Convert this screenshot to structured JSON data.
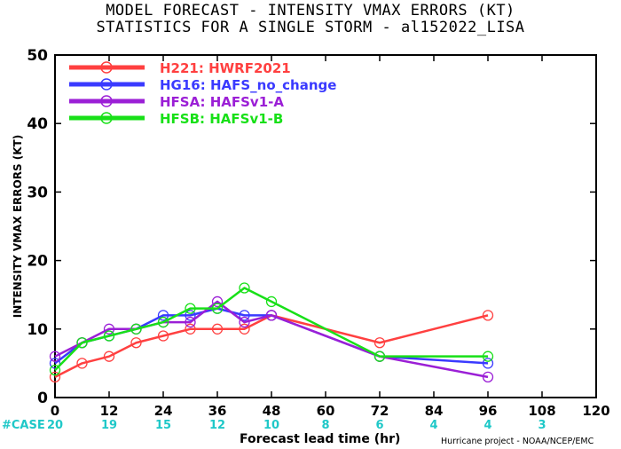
{
  "chart_data": {
    "type": "line",
    "title": "MODEL FORECAST - INTENSITY VMAX ERRORS (KT)",
    "subtitle": "STATISTICS FOR A SINGLE STORM - al152022_LISA",
    "xlabel": "Forecast lead time (hr)",
    "ylabel": "INTENSITY VMAX ERRORS (KT)",
    "xlim": [
      0,
      120
    ],
    "ylim": [
      0,
      50
    ],
    "xticks": [
      0,
      12,
      24,
      36,
      48,
      60,
      72,
      84,
      96,
      108,
      120
    ],
    "yticks": [
      0,
      10,
      20,
      30,
      40,
      50
    ],
    "grid": false,
    "legend_position": "top-left",
    "series": [
      {
        "name": "H221: HWRF2021",
        "color": "#ff4040",
        "x": [
          0,
          6,
          12,
          18,
          24,
          30,
          36,
          42,
          48,
          72,
          96
        ],
        "y": [
          3,
          5,
          6,
          8,
          9,
          10,
          10,
          10,
          12,
          8,
          12
        ]
      },
      {
        "name": "HG16: HAFS_no_change",
        "color": "#3a3aff",
        "x": [
          0,
          6,
          12,
          18,
          24,
          30,
          36,
          42,
          48,
          72,
          96
        ],
        "y": [
          5,
          8,
          9,
          10,
          12,
          12,
          13,
          12,
          12,
          6,
          5
        ]
      },
      {
        "name": "HFSA: HAFSv1-A",
        "color": "#9b1fd6",
        "x": [
          0,
          6,
          12,
          18,
          24,
          30,
          36,
          42,
          48,
          72,
          96
        ],
        "y": [
          6,
          8,
          10,
          10,
          11,
          11,
          14,
          11,
          12,
          6,
          3
        ]
      },
      {
        "name": "HFSB: HAFSv1-B",
        "color": "#18e018",
        "x": [
          0,
          6,
          12,
          18,
          24,
          30,
          36,
          42,
          48,
          72,
          96
        ],
        "y": [
          4,
          8,
          9,
          10,
          11,
          13,
          13,
          16,
          14,
          6,
          6
        ]
      }
    ],
    "cases": {
      "label": "#CASE",
      "x": [
        0,
        12,
        24,
        36,
        48,
        60,
        72,
        84,
        96,
        108
      ],
      "counts": [
        "20",
        "19",
        "15",
        "12",
        "10",
        "8",
        "6",
        "4",
        "4",
        "3"
      ],
      "color": "#1fc8c8"
    }
  },
  "footer": {
    "credit": "Hurricane project - NOAA/NCEP/EMC"
  }
}
